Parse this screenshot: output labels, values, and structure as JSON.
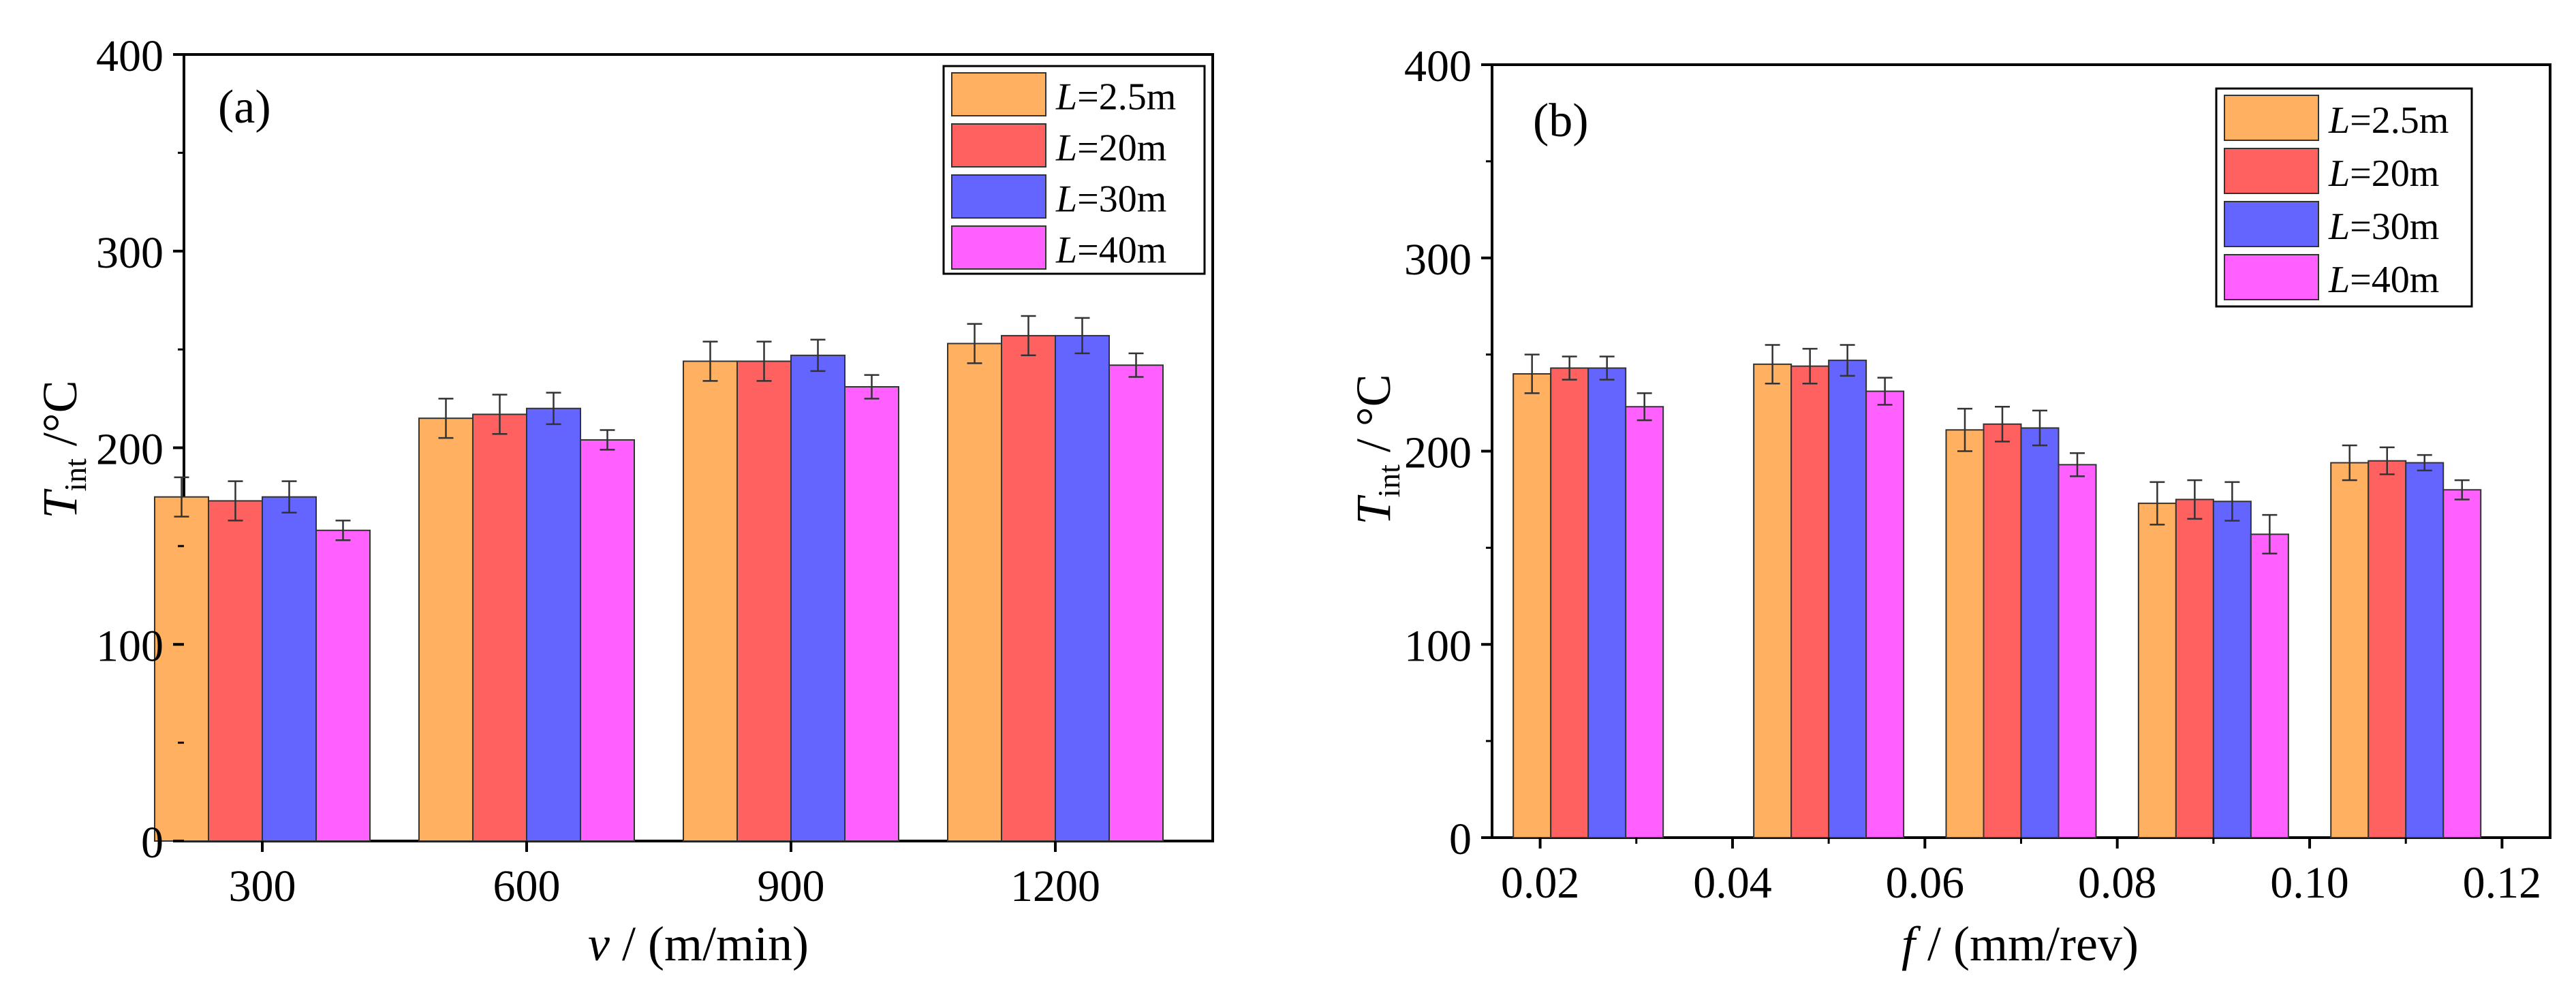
{
  "chart_data": [
    {
      "type": "bar",
      "panel_label": "(a)",
      "categories": [
        "300",
        "600",
        "900",
        "1200"
      ],
      "x_ticks": [
        "300",
        "600",
        "900",
        "1200"
      ],
      "xlabel_var": "v",
      "xlabel_unit": " / (m/min)",
      "ylabel_var": "T",
      "ylabel_sub": "int",
      "ylabel_unit": " /°C",
      "ylim": [
        0,
        400
      ],
      "y_ticks": [
        "0",
        "100",
        "200",
        "300",
        "400"
      ],
      "legend_position": "top-right",
      "series": [
        {
          "name": "2.5m",
          "color": "#FFB060",
          "values": [
            175,
            215,
            244,
            253
          ],
          "errors": [
            10,
            10,
            10,
            10
          ]
        },
        {
          "name": "20m",
          "color": "#FF6060",
          "values": [
            173,
            217,
            244,
            257
          ],
          "errors": [
            10,
            10,
            10,
            10
          ]
        },
        {
          "name": "30m",
          "color": "#6464FF",
          "values": [
            175,
            220,
            247,
            257
          ],
          "errors": [
            8,
            8,
            8,
            9
          ]
        },
        {
          "name": "40m",
          "color": "#FF60FF",
          "values": [
            158,
            204,
            231,
            242
          ],
          "errors": [
            5,
            5,
            6,
            6
          ]
        }
      ]
    },
    {
      "type": "bar",
      "panel_label": "(b)",
      "categories": [
        "0.025",
        "0.05",
        "0.07",
        "0.09",
        "0.11"
      ],
      "x_ticks": [
        "0.02",
        "0.04",
        "0.06",
        "0.08",
        "0.10",
        "0.12"
      ],
      "xlim": [
        0.015,
        0.125
      ],
      "xlabel_var": "f",
      "xlabel_unit": " / (mm/rev)",
      "ylabel_var": "T",
      "ylabel_sub": "int",
      "ylabel_unit": " / °C",
      "ylim": [
        0,
        400
      ],
      "y_ticks": [
        "0",
        "100",
        "200",
        "300",
        "400"
      ],
      "legend_position": "top-right",
      "series": [
        {
          "name": "2.5m",
          "color": "#FFB060",
          "values": [
            240,
            245,
            211,
            173,
            194
          ],
          "errors": [
            10,
            10,
            11,
            11,
            9
          ]
        },
        {
          "name": "20m",
          "color": "#FF6060",
          "values": [
            243,
            244,
            214,
            175,
            195
          ],
          "errors": [
            6,
            9,
            9,
            10,
            7
          ]
        },
        {
          "name": "30m",
          "color": "#6464FF",
          "values": [
            243,
            247,
            212,
            174,
            194
          ],
          "errors": [
            6,
            8,
            9,
            10,
            4
          ]
        },
        {
          "name": "40m",
          "color": "#FF60FF",
          "values": [
            223,
            231,
            193,
            157,
            180
          ],
          "errors": [
            7,
            7,
            6,
            10,
            5
          ]
        }
      ]
    }
  ]
}
